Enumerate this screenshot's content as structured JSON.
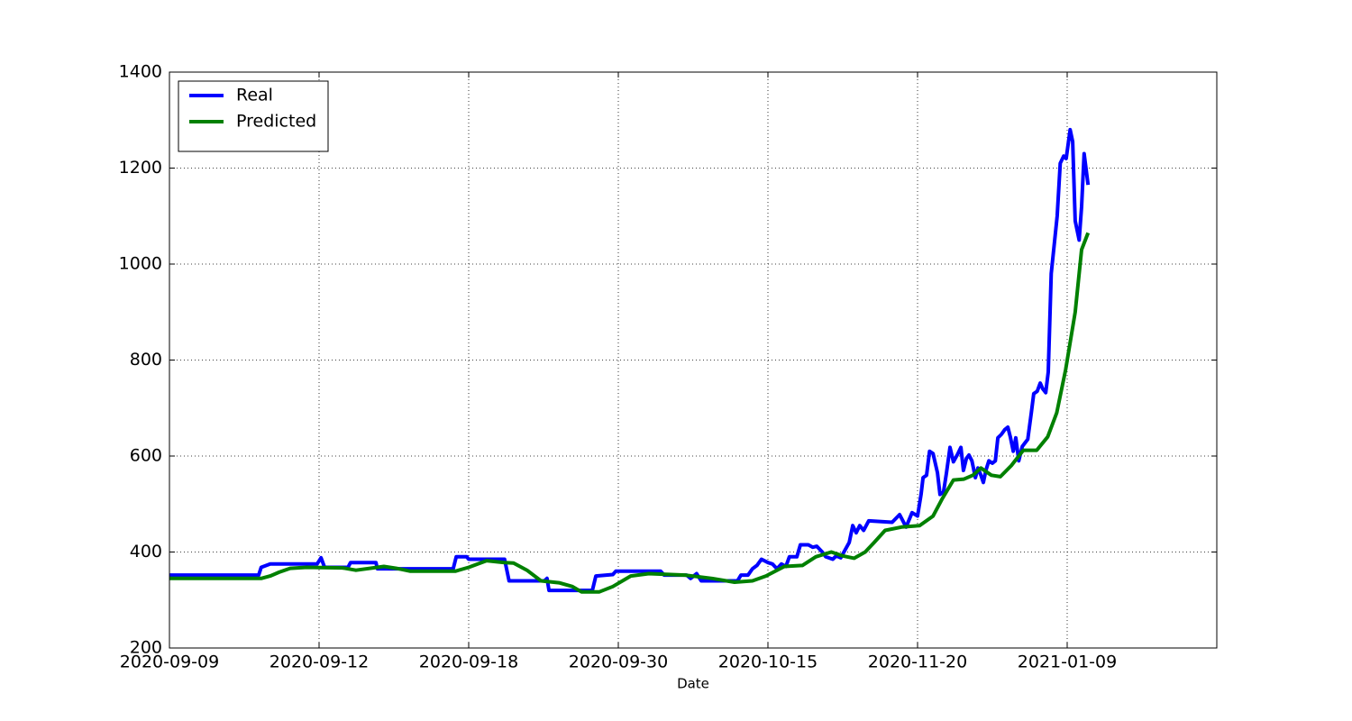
{
  "chart_data": {
    "type": "line",
    "xlabel": "Date",
    "xlim": [
      0,
      210
    ],
    "xticks": [
      {
        "value": 0,
        "label": "2020-09-09"
      },
      {
        "value": 30,
        "label": "2020-09-12"
      },
      {
        "value": 60,
        "label": "2020-09-18"
      },
      {
        "value": 90,
        "label": "2020-09-30"
      },
      {
        "value": 120,
        "label": "2020-10-15"
      },
      {
        "value": 150,
        "label": "2020-11-20"
      },
      {
        "value": 180,
        "label": "2021-01-09"
      }
    ],
    "ylim": [
      200,
      1400
    ],
    "yticks": [
      200,
      400,
      600,
      800,
      1000,
      1200,
      1400
    ],
    "grid": true,
    "legend": "upper left",
    "series": [
      {
        "name": "Real",
        "color": "#0000ff",
        "x": [
          0,
          17.9,
          18.4,
          20.2,
          29.6,
          30.4,
          31.1,
          35.8,
          36.3,
          41.4,
          41.7,
          56.9,
          57.5,
          59.6,
          60,
          67.2,
          68.1,
          75.2,
          75.7,
          76.1,
          84.8,
          85.5,
          88.9,
          89.5,
          98.5,
          99.2,
          103.7,
          104.5,
          105.7,
          106.6,
          113.9,
          114.6,
          116,
          116.9,
          117.8,
          118.7,
          120,
          120.9,
          121.8,
          122.7,
          123.6,
          124.3,
          125.8,
          126.5,
          128.1,
          129,
          129.8,
          130.9,
          131.6,
          133,
          133.7,
          134.6,
          135.5,
          136.3,
          137,
          137.7,
          138.4,
          139.2,
          140.2,
          144.9,
          146.4,
          147.7,
          148.9,
          150,
          150.7,
          151.1,
          151.8,
          152.4,
          153.1,
          154,
          154.5,
          155.2,
          155.8,
          156.5,
          157.2,
          158.1,
          158.7,
          159.2,
          159.8,
          160.3,
          160.9,
          161.6,
          162.1,
          162.7,
          163.2,
          163.7,
          164.3,
          165,
          165.6,
          166.1,
          166.8,
          167.5,
          168.1,
          168.6,
          169.2,
          169.7,
          170.3,
          171,
          172.1,
          172.8,
          173.3,
          174,
          174.6,
          175.1,
          175.7,
          176.2,
          176.8,
          178,
          178.6,
          179.3,
          179.8,
          180.6,
          181.1,
          181.6,
          182.4,
          182.9,
          183.4,
          184.2
        ],
        "values": [
          352,
          352,
          368,
          375,
          375,
          388,
          368,
          368,
          378,
          378,
          365,
          365,
          390,
          390,
          385,
          385,
          340,
          340,
          345,
          320,
          320,
          350,
          353,
          360,
          360,
          352,
          352,
          345,
          355,
          340,
          340,
          352,
          352,
          365,
          372,
          385,
          378,
          375,
          365,
          375,
          370,
          390,
          390,
          415,
          415,
          410,
          412,
          400,
          390,
          385,
          392,
          388,
          405,
          420,
          455,
          440,
          455,
          445,
          465,
          462,
          478,
          452,
          482,
          475,
          520,
          555,
          560,
          610,
          605,
          565,
          520,
          525,
          565,
          618,
          588,
          605,
          618,
          570,
          595,
          602,
          590,
          555,
          575,
          560,
          545,
          570,
          590,
          585,
          590,
          638,
          645,
          655,
          660,
          640,
          610,
          638,
          590,
          620,
          635,
          690,
          730,
          735,
          752,
          740,
          732,
          775,
          980,
          1100,
          1210,
          1225,
          1220,
          1280,
          1255,
          1090,
          1050,
          1120,
          1230,
          1165
        ]
      },
      {
        "name": "Predicted",
        "color": "#008000",
        "x": [
          0,
          18.4,
          20.2,
          22,
          24.2,
          27.5,
          34.7,
          37.4,
          43,
          45.5,
          48.3,
          57.3,
          60,
          63.6,
          67.2,
          69,
          71.7,
          74.5,
          78.1,
          80.8,
          82.6,
          86.2,
          88.9,
          92.5,
          96.1,
          103.4,
          108.8,
          113.3,
          116.9,
          119.6,
          123.3,
          126.9,
          129.6,
          132.7,
          135,
          137.3,
          139.5,
          141.3,
          143.5,
          146.8,
          150.4,
          153.1,
          154.9,
          157.2,
          159.3,
          161.1,
          162.7,
          164.8,
          166.6,
          168.8,
          171.2,
          173.9,
          176.1,
          177.9,
          179.7,
          181.6,
          182.9,
          184.2
        ],
        "values": [
          345,
          345,
          350,
          358,
          366,
          368,
          367,
          362,
          370,
          366,
          360,
          360,
          368,
          382,
          378,
          377,
          362,
          340,
          336,
          328,
          317,
          317,
          328,
          350,
          355,
          352,
          345,
          337,
          340,
          350,
          370,
          372,
          390,
          400,
          392,
          387,
          400,
          420,
          445,
          452,
          455,
          475,
          510,
          550,
          552,
          560,
          575,
          560,
          557,
          580,
          612,
          612,
          640,
          690,
          780,
          900,
          1030,
          1065
        ]
      }
    ]
  }
}
